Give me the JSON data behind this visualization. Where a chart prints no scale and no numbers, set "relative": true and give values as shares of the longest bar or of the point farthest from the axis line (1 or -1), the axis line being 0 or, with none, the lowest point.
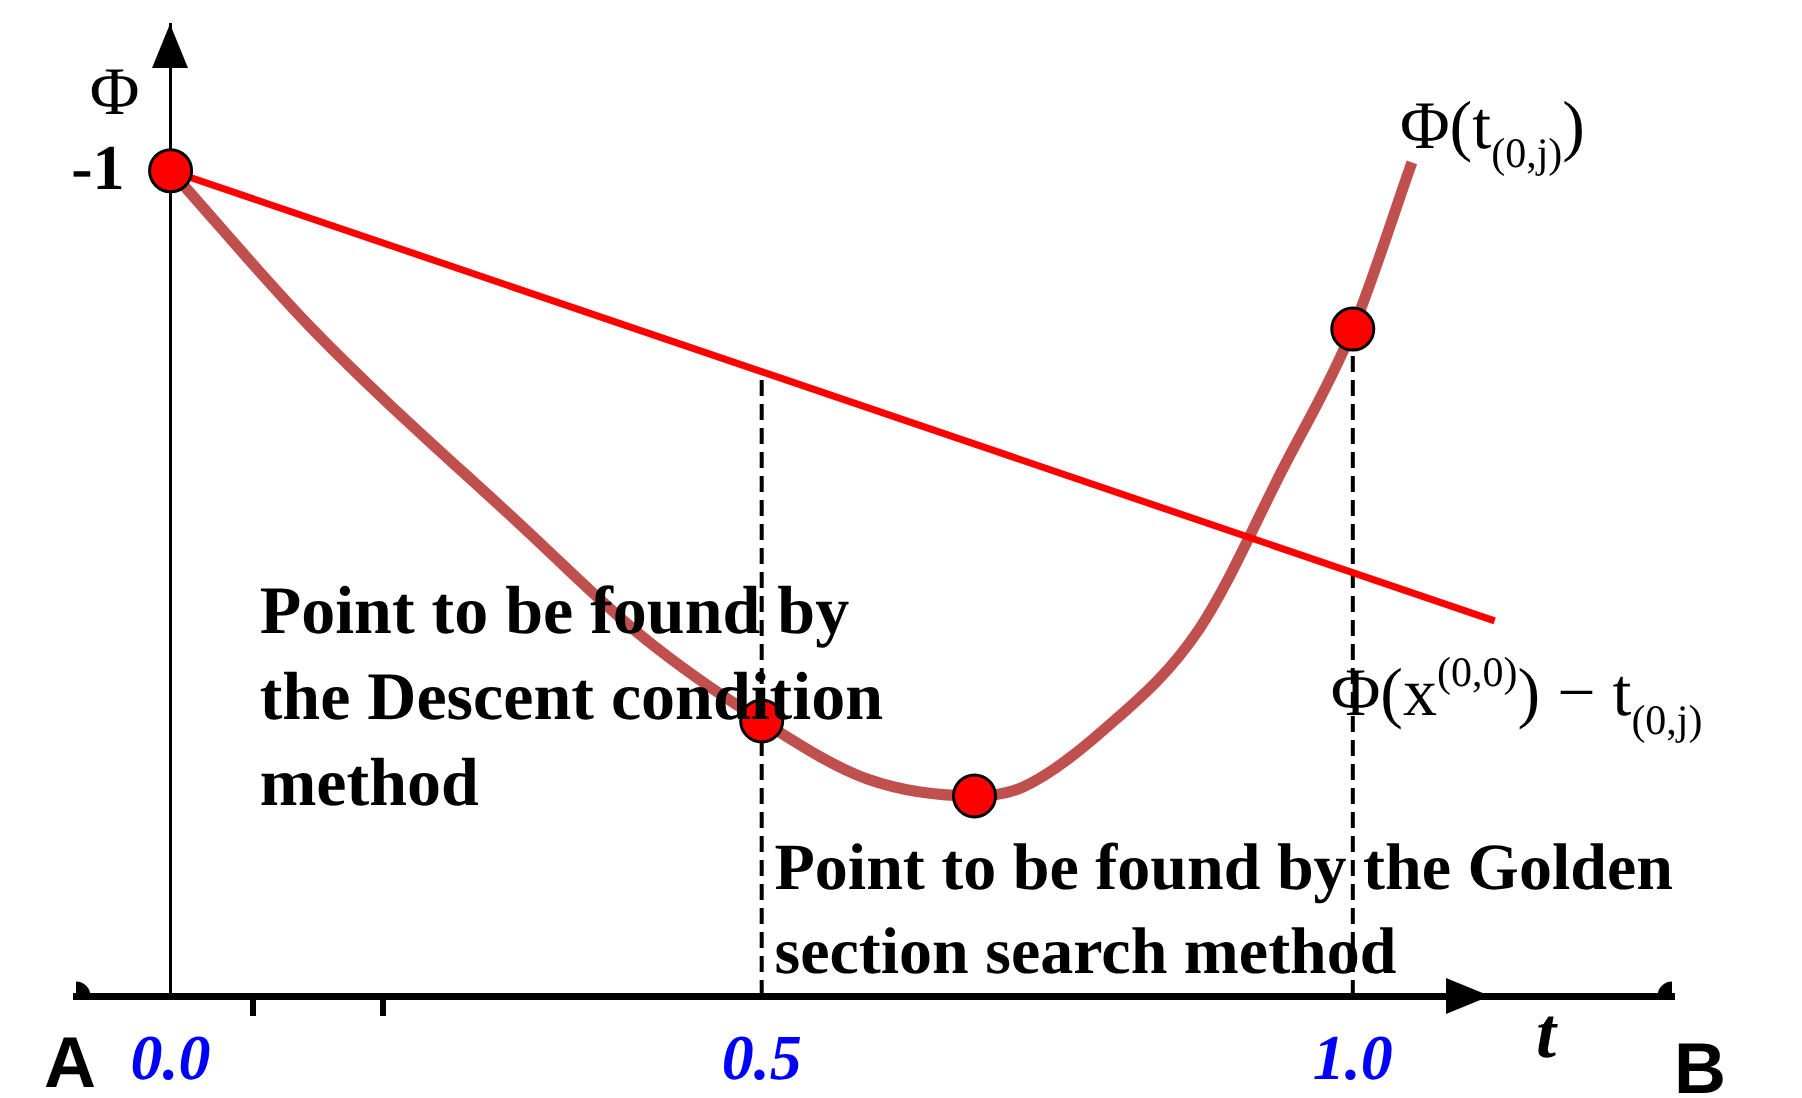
{
  "chart_data": {
    "type": "line",
    "xlabel": "t",
    "ylabel": "Φ",
    "relative": true,
    "xlim": [
      -0.08,
      1.27
    ],
    "xticks": [
      {
        "value": 0,
        "label": "0.0"
      },
      {
        "value": 0.07,
        "label": null
      },
      {
        "value": 0.18,
        "label": null
      },
      0.5,
      {
        "value": 1,
        "label": "1.0"
      }
    ],
    "series": [
      {
        "name": "Φ(t$_{(0,j)}$)",
        "color": "#c0504d",
        "x": [
          0,
          0.12,
          0.3,
          0.4,
          0.5,
          0.59,
          0.68,
          0.72,
          0.79,
          0.87,
          0.94,
          1,
          1.05
        ],
        "values": [
          0.99,
          0.8,
          0.56,
          0.43,
          0.33,
          0.26,
          0.24,
          0.25,
          0.32,
          0.44,
          0.63,
          0.8,
          1
        ]
      },
      {
        "name": "Φ(x$^{(0,0)}$) − t$_{(0,j)}$",
        "color": "#ff0000",
        "x": [
          0,
          1.12
        ],
        "values": [
          0.99,
          0.45
        ]
      },
      {
        "type": "scatter",
        "color": "#ff0000",
        "marker": "circle",
        "x": [
          0,
          0.5,
          0.68,
          1
        ],
        "values": [
          0.99,
          0.33,
          0.24,
          0.8
        ]
      },
      {
        "type": "scatter",
        "color": "#000000",
        "marker": "circle",
        "x": [
          -0.08,
          1.27
        ],
        "values": [
          0,
          0
        ]
      }
    ],
    "ref_lines": [
      {
        "axis": "x",
        "value": 0.5,
        "color": "#000000",
        "line_style": "dashed"
      },
      {
        "axis": "x",
        "value": 1,
        "color": "#000000",
        "line_style": "dashed"
      }
    ],
    "annotations": [
      {
        "text": "-1",
        "x": 0,
        "y": 0.99
      },
      {
        "text": "Point to be found by the Descent condition method",
        "x": 0.5,
        "y": 0.33
      },
      {
        "text": "Point to be found by the Golden section search method",
        "x": 0.68,
        "y": 0.24
      },
      {
        "text": "A",
        "x": -0.08,
        "y": 0
      },
      {
        "text": "B",
        "x": 1.27,
        "y": 0
      }
    ]
  }
}
